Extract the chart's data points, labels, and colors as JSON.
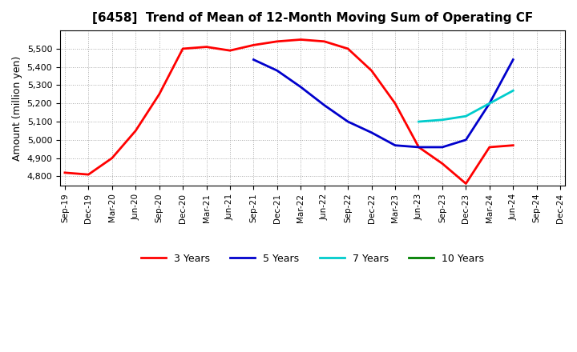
{
  "title": "[6458]  Trend of Mean of 12-Month Moving Sum of Operating CF",
  "ylabel": "Amount (million yen)",
  "ylim": [
    4750,
    5600
  ],
  "yticks": [
    4800,
    4900,
    5000,
    5100,
    5200,
    5300,
    5400,
    5500
  ],
  "background_color": "#ffffff",
  "grid_color": "#aaaaaa",
  "legend_entries": [
    "3 Years",
    "5 Years",
    "7 Years",
    "10 Years"
  ],
  "legend_colors": [
    "#ff0000",
    "#0000cc",
    "#00cccc",
    "#008000"
  ],
  "x_labels": [
    "Sep-19",
    "Dec-19",
    "Mar-20",
    "Jun-20",
    "Sep-20",
    "Dec-20",
    "Mar-21",
    "Jun-21",
    "Sep-21",
    "Dec-21",
    "Mar-22",
    "Jun-22",
    "Sep-22",
    "Dec-22",
    "Mar-23",
    "Jun-23",
    "Sep-23",
    "Dec-23",
    "Mar-24",
    "Jun-24",
    "Sep-24",
    "Dec-24"
  ],
  "series": {
    "3y": {
      "color": "#ff0000",
      "x": [
        "Sep-19",
        "Dec-19",
        "Mar-20",
        "Jun-20",
        "Sep-20",
        "Dec-20",
        "Mar-21",
        "Jun-21",
        "Sep-21",
        "Dec-21",
        "Mar-22",
        "Jun-22",
        "Sep-22",
        "Dec-22",
        "Mar-23",
        "Jun-23",
        "Sep-23",
        "Dec-23",
        "Mar-24",
        "Jun-24"
      ],
      "y": [
        4820,
        4810,
        4900,
        5050,
        5250,
        5500,
        5510,
        5490,
        5520,
        5540,
        5550,
        5540,
        5500,
        5380,
        5200,
        4960,
        4870,
        4760,
        4960,
        4970
      ]
    },
    "5y": {
      "color": "#0000cc",
      "x": [
        "Sep-21",
        "Dec-21",
        "Mar-22",
        "Jun-22",
        "Sep-22",
        "Dec-22",
        "Mar-23",
        "Jun-23",
        "Sep-23",
        "Dec-23",
        "Mar-24",
        "Jun-24"
      ],
      "y": [
        5440,
        5380,
        5290,
        5190,
        5100,
        5040,
        4970,
        4960,
        4960,
        5000,
        5200,
        5440
      ]
    },
    "7y": {
      "color": "#00cccc",
      "x": [
        "Jun-23",
        "Sep-23",
        "Dec-23",
        "Mar-24",
        "Jun-24"
      ],
      "y": [
        5100,
        5110,
        5130,
        5200,
        5270
      ]
    },
    "10y": {
      "color": "#008000",
      "x": [],
      "y": []
    }
  }
}
